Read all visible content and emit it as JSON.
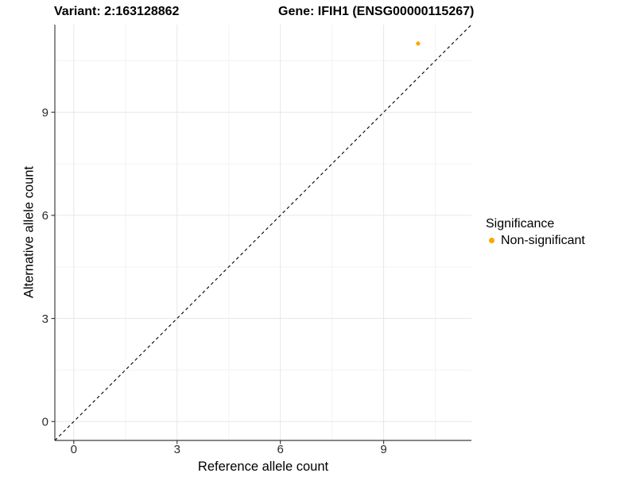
{
  "titles": {
    "variant": "Variant: 2:163128862",
    "gene": "Gene: IFIH1 (ENSG00000115267)"
  },
  "colors": {
    "point_orange": "#FFA500",
    "axis": "#3f3f3f",
    "grid_major": "#e7e7e7",
    "grid_minor": "#f3f3f3",
    "reference_line": "#000000",
    "tick_label": "#2b2b2b"
  },
  "chart_data": {
    "type": "scatter",
    "title_left": "Variant: 2:163128862",
    "title_right": "Gene: IFIH1 (ENSG00000115267)",
    "xlabel": "Reference allele count",
    "ylabel": "Alternative allele count",
    "xlim": [
      -0.55,
      11.55
    ],
    "ylim": [
      -0.55,
      11.55
    ],
    "x_ticks": [
      0,
      3,
      6,
      9
    ],
    "y_ticks": [
      0,
      3,
      6,
      9
    ],
    "x_minor_ticks": [
      1.5,
      4.5,
      7.5,
      10.5
    ],
    "y_minor_ticks": [
      1.5,
      4.5,
      7.5,
      10.5
    ],
    "grid": true,
    "reference_line": {
      "type": "identity",
      "style": "dashed",
      "color": "#000000"
    },
    "series": [
      {
        "name": "Non-significant",
        "color": "#FFA500",
        "points": [
          [
            10,
            11
          ]
        ]
      }
    ],
    "legend": {
      "title": "Significance",
      "position": "right",
      "entries": [
        {
          "label": "Non-significant",
          "color": "#FFA500"
        }
      ]
    }
  }
}
